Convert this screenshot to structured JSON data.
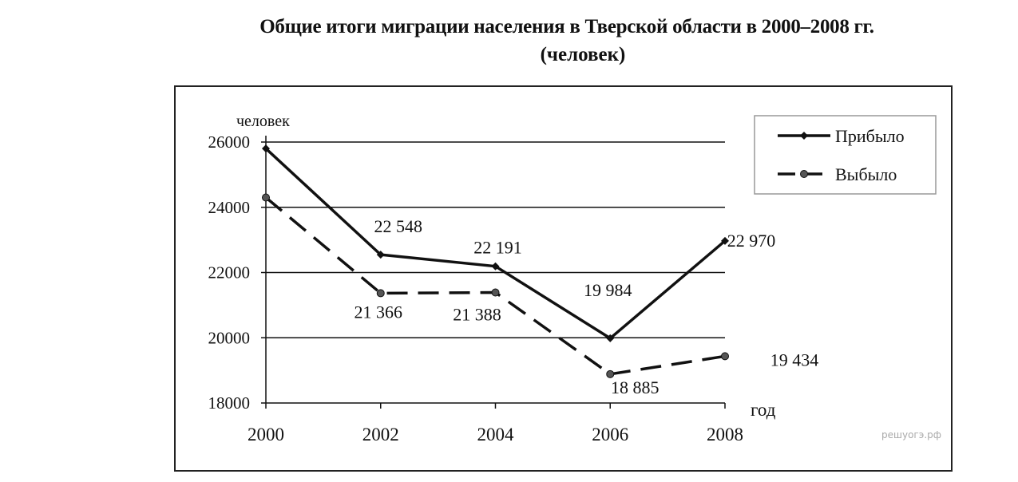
{
  "chart_data": {
    "type": "line",
    "title": "Общие итоги миграции населения в Тверской области в 2000–2008 гг.",
    "subtitle": "(человек)",
    "xlabel": "год",
    "ylabel": "человек",
    "x": [
      2000,
      2002,
      2004,
      2006,
      2008
    ],
    "x_tick_labels": [
      "2000",
      "2002",
      "2004",
      "2006",
      "2008"
    ],
    "ylim": [
      18000,
      26000
    ],
    "y_ticks": [
      18000,
      20000,
      22000,
      24000,
      26000
    ],
    "y_tick_labels": [
      "18000",
      "20000",
      "22000",
      "24000",
      "26000"
    ],
    "grid": "horizontal",
    "legend_position": "top-right",
    "series": [
      {
        "name": "Прибыло",
        "style": "solid",
        "marker": "diamond",
        "color": "#111111",
        "values": [
          25800,
          22548,
          22191,
          19984,
          22970
        ],
        "data_labels": [
          "",
          "22 548",
          "22 191",
          "19 984",
          "22 970"
        ]
      },
      {
        "name": "Выбыло",
        "style": "dashed",
        "marker": "circle",
        "color": "#111111",
        "values": [
          24300,
          21366,
          21388,
          18885,
          19434
        ],
        "data_labels": [
          "",
          "21 366",
          "21 388",
          "18 885",
          "19 434"
        ]
      }
    ],
    "watermark": "решуогэ.рф"
  }
}
